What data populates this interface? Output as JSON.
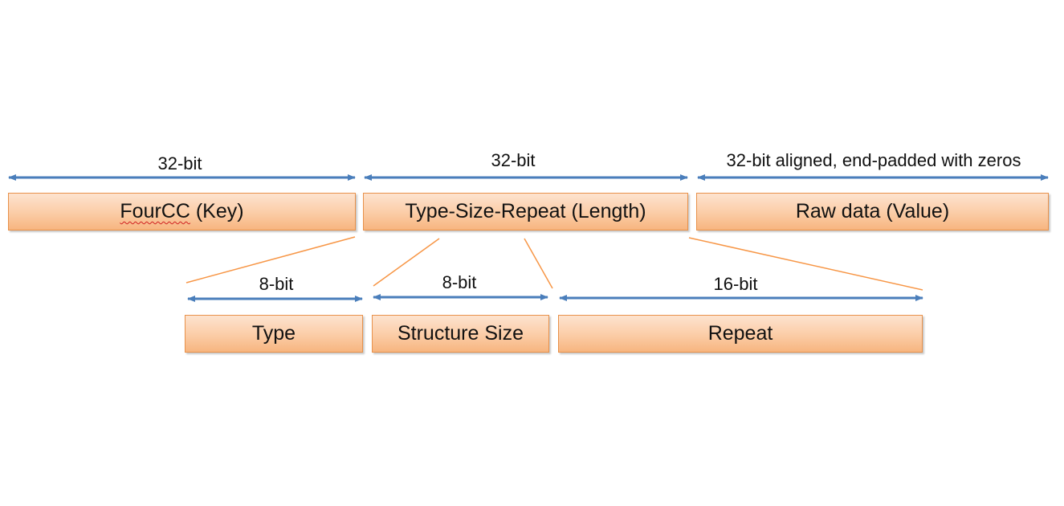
{
  "top_row": {
    "key": {
      "width_label": "32-bit",
      "box_label_main": "FourCC",
      "box_label_suffix": " (Key)"
    },
    "length": {
      "width_label": "32-bit",
      "box_label": "Type-Size-Repeat (Length)"
    },
    "value": {
      "width_label": "32-bit aligned, end-padded with zeros",
      "box_label": "Raw data (Value)"
    }
  },
  "bottom_row": {
    "type": {
      "width_label": "8-bit",
      "box_label": "Type"
    },
    "structure_size": {
      "width_label": "8-bit",
      "box_label": "Structure Size"
    },
    "repeat": {
      "width_label": "16-bit",
      "box_label": "Repeat"
    }
  },
  "colors": {
    "arrow": "#4a7ebb",
    "connector": "#f79646",
    "box_border": "#e8914a",
    "box_fill_top": "#fde3cf",
    "box_fill_bottom": "#f7b57f"
  }
}
